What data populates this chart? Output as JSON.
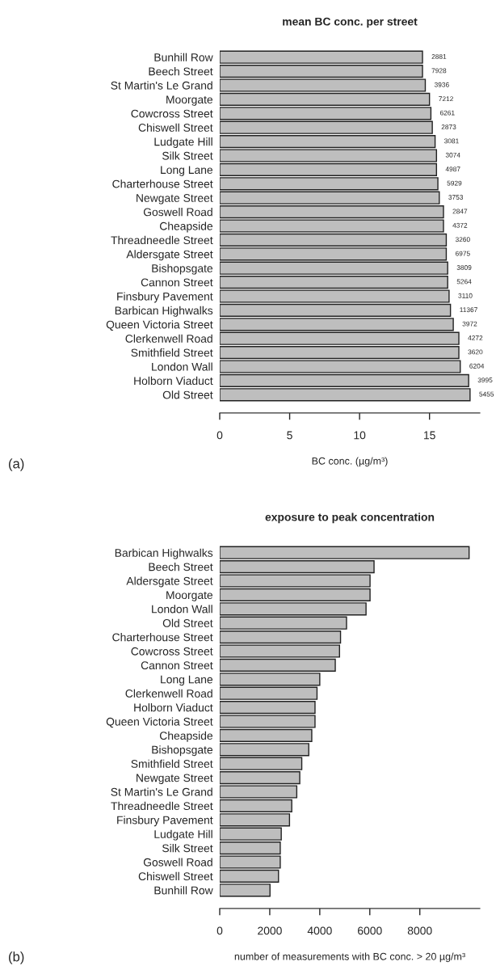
{
  "chart_data": [
    {
      "type": "bar",
      "orientation": "horizontal",
      "title": "mean BC conc. per street",
      "xlabel": "BC conc. (µg/m³)",
      "categories": [
        "Bunhill Row",
        "Beech Street",
        "St Martin's Le Grand",
        "Moorgate",
        "Cowcross Street",
        "Chiswell Street",
        "Ludgate Hill",
        "Silk Street",
        "Long Lane",
        "Charterhouse Street",
        "Newgate Street",
        "Goswell Road",
        "Cheapside",
        "Threadneedle Street",
        "Aldersgate Street",
        "Bishopsgate",
        "Cannon Street",
        "Finsbury Pavement",
        "Barbican Highwalks",
        "Queen Victoria Street",
        "Clerkenwell Road",
        "Smithfield Street",
        "London Wall",
        "Holborn Viaduct",
        "Old Street"
      ],
      "values": [
        14.5,
        14.5,
        14.7,
        15.0,
        15.1,
        15.2,
        15.4,
        15.5,
        15.5,
        15.6,
        15.7,
        16.0,
        16.0,
        16.2,
        16.2,
        16.3,
        16.3,
        16.4,
        16.5,
        16.7,
        17.1,
        17.1,
        17.2,
        17.8,
        17.9
      ],
      "color": "#bebebe",
      "xlim": [
        0,
        18.6
      ],
      "xticks": [
        0,
        5,
        10,
        15
      ],
      "grid": false,
      "annotations": [
        {
          "text": "2881",
          "x": 14.5,
          "y": "Bunhill Row"
        },
        {
          "text": "7928",
          "x": 14.5,
          "y": "Beech Street"
        },
        {
          "text": "3936",
          "x": 14.7,
          "y": "St Martin's Le Grand"
        },
        {
          "text": "7212",
          "x": 15.0,
          "y": "Moorgate"
        },
        {
          "text": "6261",
          "x": 15.1,
          "y": "Cowcross Street"
        },
        {
          "text": "2873",
          "x": 15.2,
          "y": "Chiswell Street"
        },
        {
          "text": "3081",
          "x": 15.4,
          "y": "Ludgate Hill"
        },
        {
          "text": "3074",
          "x": 15.5,
          "y": "Silk Street"
        },
        {
          "text": "4987",
          "x": 15.5,
          "y": "Long Lane"
        },
        {
          "text": "5929",
          "x": 15.6,
          "y": "Charterhouse Street"
        },
        {
          "text": "3753",
          "x": 15.7,
          "y": "Newgate Street"
        },
        {
          "text": "2847",
          "x": 16.0,
          "y": "Goswell Road"
        },
        {
          "text": "4372",
          "x": 16.0,
          "y": "Cheapside"
        },
        {
          "text": "3260",
          "x": 16.2,
          "y": "Threadneedle Street"
        },
        {
          "text": "6975",
          "x": 16.2,
          "y": "Aldersgate Street"
        },
        {
          "text": "3809",
          "x": 16.3,
          "y": "Bishopsgate"
        },
        {
          "text": "5264",
          "x": 16.3,
          "y": "Cannon Street"
        },
        {
          "text": "3110",
          "x": 16.4,
          "y": "Finsbury Pavement"
        },
        {
          "text": "11367",
          "x": 16.5,
          "y": "Barbican Highwalks"
        },
        {
          "text": "3972",
          "x": 16.7,
          "y": "Queen Victoria Street"
        },
        {
          "text": "4272",
          "x": 17.1,
          "y": "Clerkenwell Road"
        },
        {
          "text": "3620",
          "x": 17.1,
          "y": "Smithfield Street"
        },
        {
          "text": "6204",
          "x": 17.2,
          "y": "London Wall"
        },
        {
          "text": "3995",
          "x": 17.8,
          "y": "Holborn Viaduct"
        },
        {
          "text": "5455",
          "x": 17.9,
          "y": "Old Street"
        },
        "(a)"
      ]
    },
    {
      "type": "bar",
      "orientation": "horizontal",
      "title": "exposure to peak concentration",
      "xlabel": "number of measurements with BC conc. > 20 µg/m³",
      "categories": [
        "Barbican Highwalks",
        "Beech Street",
        "Aldersgate Street",
        "Moorgate",
        "London Wall",
        "Old Street",
        "Charterhouse Street",
        "Cowcross Street",
        "Cannon Street",
        "Long Lane",
        "Clerkenwell Road",
        "Holborn Viaduct",
        "Queen Victoria Street",
        "Cheapside",
        "Bishopsgate",
        "Smithfield Street",
        "Newgate Street",
        "St Martin's Le Grand",
        "Threadneedle Street",
        "Finsbury Pavement",
        "Ludgate Hill",
        "Silk Street",
        "Goswell Road",
        "Chiswell Street",
        "Bunhill Row"
      ],
      "values": [
        9970,
        6170,
        6010,
        6010,
        5850,
        5070,
        4830,
        4790,
        4620,
        4000,
        3890,
        3810,
        3810,
        3680,
        3560,
        3280,
        3200,
        3080,
        2880,
        2790,
        2460,
        2420,
        2420,
        2350,
        2010
      ],
      "color": "#bebebe",
      "xlim": [
        0,
        10400
      ],
      "xticks": [
        0,
        2000,
        4000,
        6000,
        8000
      ],
      "grid": false,
      "annotations": [
        "(b)"
      ]
    }
  ]
}
